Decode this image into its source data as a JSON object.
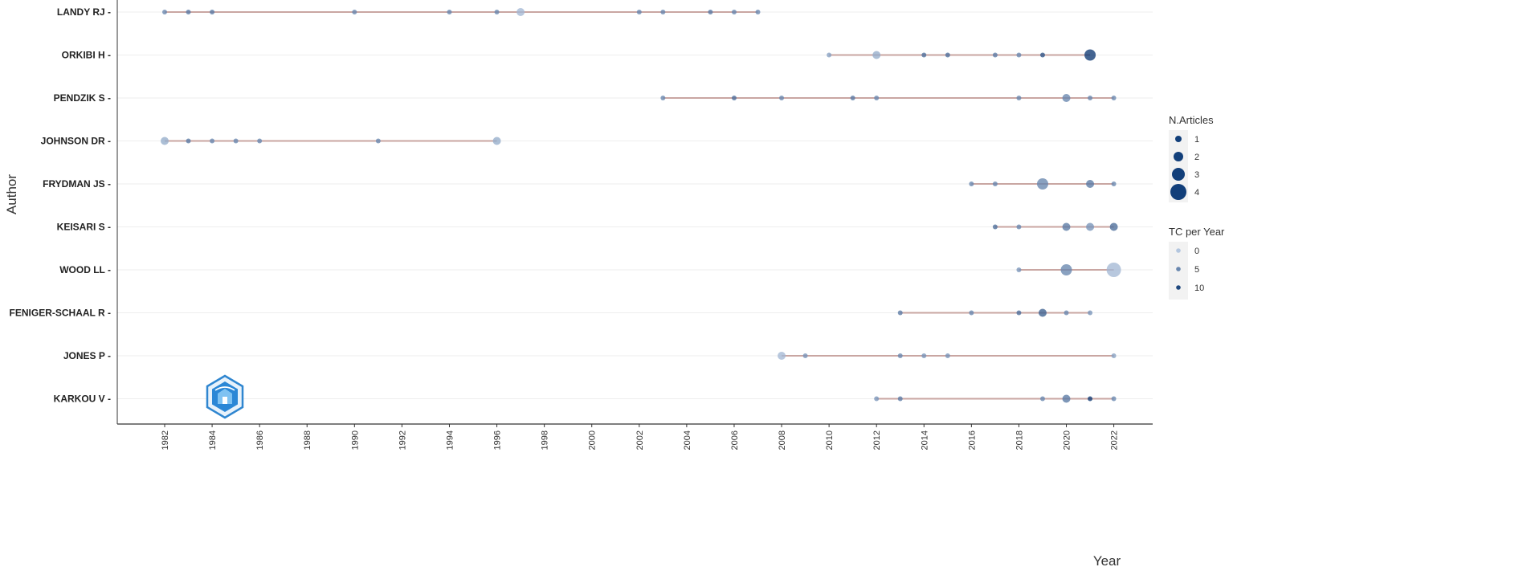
{
  "chart_data": {
    "type": "scatter",
    "title": "",
    "xlabel": "Year",
    "ylabel": "Author",
    "xlim": [
      1980,
      2024
    ],
    "x_ticks": [
      "1982",
      "1984",
      "1986",
      "1988",
      "1990",
      "1992",
      "1994",
      "1996",
      "1998",
      "2000",
      "2002",
      "2004",
      "2006",
      "2008",
      "2010",
      "2012",
      "2014",
      "2016",
      "2018",
      "2020",
      "2022"
    ],
    "grid": true,
    "legend_position": "right",
    "segment_color": "#c9a6a2",
    "point_color_low": "#b3c6df",
    "point_color_high": "#0f3a73",
    "authors": [
      {
        "name": "LANDY RJ",
        "range": [
          1982,
          2007
        ],
        "points": [
          {
            "year": 1982,
            "articles": 1,
            "tc": 5
          },
          {
            "year": 1983,
            "articles": 1,
            "tc": 6
          },
          {
            "year": 1984,
            "articles": 1,
            "tc": 6
          },
          {
            "year": 1990,
            "articles": 1,
            "tc": 5
          },
          {
            "year": 1994,
            "articles": 1,
            "tc": 5
          },
          {
            "year": 1996,
            "articles": 1,
            "tc": 5
          },
          {
            "year": 1997,
            "articles": 2,
            "tc": 1
          },
          {
            "year": 2002,
            "articles": 1,
            "tc": 5
          },
          {
            "year": 2003,
            "articles": 1,
            "tc": 5
          },
          {
            "year": 2005,
            "articles": 1,
            "tc": 6
          },
          {
            "year": 2006,
            "articles": 1,
            "tc": 5
          },
          {
            "year": 2007,
            "articles": 1,
            "tc": 5
          }
        ]
      },
      {
        "name": "ORKIBI H",
        "range": [
          2010,
          2021
        ],
        "points": [
          {
            "year": 2010,
            "articles": 1,
            "tc": 3
          },
          {
            "year": 2012,
            "articles": 2,
            "tc": 2
          },
          {
            "year": 2014,
            "articles": 1,
            "tc": 7
          },
          {
            "year": 2015,
            "articles": 1,
            "tc": 7
          },
          {
            "year": 2017,
            "articles": 1,
            "tc": 6
          },
          {
            "year": 2018,
            "articles": 1,
            "tc": 5
          },
          {
            "year": 2019,
            "articles": 1,
            "tc": 9
          },
          {
            "year": 2021,
            "articles": 3,
            "tc": 11
          }
        ]
      },
      {
        "name": "PENDZIK S",
        "range": [
          2003,
          2022
        ],
        "points": [
          {
            "year": 2003,
            "articles": 1,
            "tc": 5
          },
          {
            "year": 2006,
            "articles": 1,
            "tc": 7
          },
          {
            "year": 2008,
            "articles": 1,
            "tc": 5
          },
          {
            "year": 2011,
            "articles": 1,
            "tc": 6
          },
          {
            "year": 2012,
            "articles": 1,
            "tc": 5
          },
          {
            "year": 2018,
            "articles": 1,
            "tc": 5
          },
          {
            "year": 2020,
            "articles": 2,
            "tc": 5
          },
          {
            "year": 2021,
            "articles": 1,
            "tc": 5
          },
          {
            "year": 2022,
            "articles": 1,
            "tc": 5
          }
        ]
      },
      {
        "name": "JOHNSON DR",
        "range": [
          1982,
          1996
        ],
        "points": [
          {
            "year": 1982,
            "articles": 2,
            "tc": 2
          },
          {
            "year": 1983,
            "articles": 1,
            "tc": 6
          },
          {
            "year": 1984,
            "articles": 1,
            "tc": 5
          },
          {
            "year": 1985,
            "articles": 1,
            "tc": 5
          },
          {
            "year": 1986,
            "articles": 1,
            "tc": 5
          },
          {
            "year": 1991,
            "articles": 1,
            "tc": 5
          },
          {
            "year": 1996,
            "articles": 2,
            "tc": 2
          }
        ]
      },
      {
        "name": "FRYDMAN JS",
        "range": [
          2016,
          2022
        ],
        "points": [
          {
            "year": 2016,
            "articles": 1,
            "tc": 5
          },
          {
            "year": 2017,
            "articles": 1,
            "tc": 5
          },
          {
            "year": 2019,
            "articles": 3,
            "tc": 5
          },
          {
            "year": 2021,
            "articles": 2,
            "tc": 6
          },
          {
            "year": 2022,
            "articles": 1,
            "tc": 5
          }
        ]
      },
      {
        "name": "KEISARI S",
        "range": [
          2017,
          2022
        ],
        "points": [
          {
            "year": 2017,
            "articles": 1,
            "tc": 7
          },
          {
            "year": 2018,
            "articles": 1,
            "tc": 5
          },
          {
            "year": 2020,
            "articles": 2,
            "tc": 6
          },
          {
            "year": 2021,
            "articles": 2,
            "tc": 4
          },
          {
            "year": 2022,
            "articles": 2,
            "tc": 7
          }
        ]
      },
      {
        "name": "WOOD LL",
        "range": [
          2018,
          2022
        ],
        "points": [
          {
            "year": 2018,
            "articles": 1,
            "tc": 4
          },
          {
            "year": 2020,
            "articles": 3,
            "tc": 5
          },
          {
            "year": 2022,
            "articles": 4,
            "tc": 1
          }
        ]
      },
      {
        "name": "FENIGER-SCHAAL R",
        "range": [
          2013,
          2021
        ],
        "points": [
          {
            "year": 2013,
            "articles": 1,
            "tc": 6
          },
          {
            "year": 2016,
            "articles": 1,
            "tc": 5
          },
          {
            "year": 2018,
            "articles": 1,
            "tc": 7
          },
          {
            "year": 2019,
            "articles": 2,
            "tc": 8
          },
          {
            "year": 2020,
            "articles": 1,
            "tc": 5
          },
          {
            "year": 2021,
            "articles": 1,
            "tc": 4
          }
        ]
      },
      {
        "name": "JONES P",
        "range": [
          2008,
          2022
        ],
        "points": [
          {
            "year": 2008,
            "articles": 2,
            "tc": 1
          },
          {
            "year": 2009,
            "articles": 1,
            "tc": 4
          },
          {
            "year": 2013,
            "articles": 1,
            "tc": 5
          },
          {
            "year": 2014,
            "articles": 1,
            "tc": 4
          },
          {
            "year": 2015,
            "articles": 1,
            "tc": 4
          },
          {
            "year": 2022,
            "articles": 1,
            "tc": 3
          }
        ]
      },
      {
        "name": "KARKOU V",
        "range": [
          2012,
          2022
        ],
        "points": [
          {
            "year": 2012,
            "articles": 1,
            "tc": 4
          },
          {
            "year": 2013,
            "articles": 1,
            "tc": 6
          },
          {
            "year": 2019,
            "articles": 1,
            "tc": 5
          },
          {
            "year": 2020,
            "articles": 2,
            "tc": 6
          },
          {
            "year": 2021,
            "articles": 1,
            "tc": 11
          },
          {
            "year": 2022,
            "articles": 1,
            "tc": 5
          }
        ]
      }
    ],
    "legend_size": {
      "title": "N.Articles",
      "items": [
        1,
        2,
        3,
        4
      ],
      "labels": [
        "1",
        "2",
        "3",
        "4"
      ]
    },
    "legend_color": {
      "title": "TC per Year",
      "items": [
        0,
        5,
        10
      ],
      "labels": [
        "0",
        "5",
        "10"
      ]
    },
    "watermark_icon": "hexagon-logo-icon"
  }
}
